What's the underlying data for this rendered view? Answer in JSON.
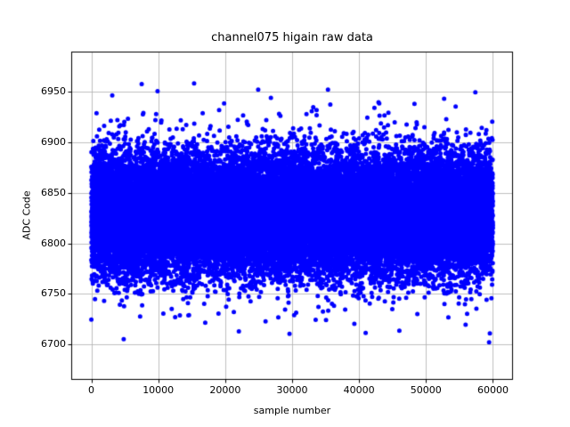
{
  "chart_data": {
    "type": "scatter",
    "title": "channel075 higain raw data",
    "xlabel": "sample number",
    "ylabel": "ADC Code",
    "xlim": [
      -3000,
      63000
    ],
    "ylim": [
      6665,
      6990
    ],
    "x_ticks": [
      0,
      10000,
      20000,
      30000,
      40000,
      50000,
      60000
    ],
    "y_ticks": [
      6700,
      6750,
      6800,
      6850,
      6900,
      6950
    ],
    "grid": true,
    "grid_color": "#b0b0b0",
    "frame_color": "#000000",
    "background_color": "#ffffff",
    "marker_color": "#0000ff",
    "marker_diameter_px": 5,
    "n_points": 60000,
    "x_range": [
      0,
      60000
    ],
    "distribution": {
      "mean": 6829,
      "std_core": 29,
      "std_tail": 50,
      "tail_fraction": 0.015,
      "y_min_observed": 6684,
      "y_max_observed": 6984,
      "dense_band": [
        6748,
        6912
      ]
    },
    "seed": 75
  }
}
